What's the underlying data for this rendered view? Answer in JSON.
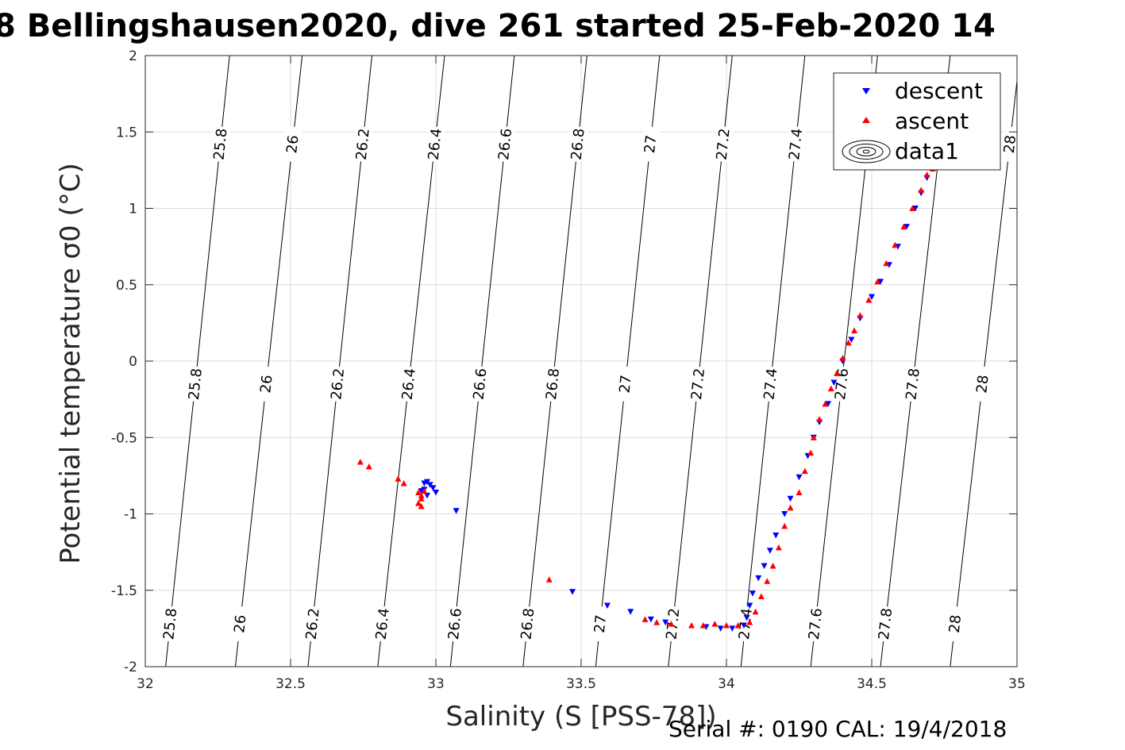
{
  "chart_data": {
    "type": "scatter",
    "title": "8 Bellingshausen2020, dive 261 started 25-Feb-2020 14",
    "xlabel": "Salinity (S [PSS-78])",
    "ylabel": "Potential temperature σ0 (°C)",
    "xlim": [
      32,
      35
    ],
    "ylim": [
      -2,
      2
    ],
    "xticks": [
      "32",
      "32.5",
      "33",
      "33.5",
      "34",
      "34.5",
      "35"
    ],
    "yticks": [
      "-2",
      "-1.5",
      "-1",
      "-0.5",
      "0",
      "0.5",
      "1",
      "1.5",
      "2"
    ],
    "grid": true,
    "legend_position": "top-right",
    "legend": [
      "descent",
      "ascent",
      "data1"
    ],
    "contours": {
      "levels": [
        25.8,
        26,
        26.2,
        26.4,
        26.6,
        26.8,
        27,
        27.2,
        27.4,
        27.6,
        27.8,
        28
      ],
      "labels": [
        "25.8",
        "26",
        "26.2",
        "26.4",
        "26.6",
        "26.8",
        "27",
        "27.2",
        "27.4",
        "27.6",
        "27.8",
        "28"
      ],
      "s_at_bottom": [
        32.07,
        32.31,
        32.56,
        32.8,
        33.05,
        33.3,
        33.55,
        33.8,
        34.05,
        34.29,
        34.53,
        34.77
      ],
      "s_at_top": [
        32.29,
        32.54,
        32.78,
        33.03,
        33.27,
        33.52,
        33.77,
        34.02,
        34.27,
        34.52,
        34.77,
        35.01
      ]
    },
    "series": [
      {
        "name": "descent",
        "color": "#0000ff",
        "marker": "triangle-down",
        "x": [
          32.95,
          32.96,
          32.97,
          32.98,
          32.99,
          33.0,
          32.97,
          32.96,
          33.07,
          33.47,
          33.59,
          33.67,
          33.74,
          33.79,
          33.93,
          33.98,
          34.02,
          34.06,
          34.07,
          34.08,
          34.09,
          34.11,
          34.13,
          34.15,
          34.17,
          34.2,
          34.22,
          34.25,
          34.28,
          34.3,
          34.32,
          34.35,
          34.37,
          34.4,
          34.43,
          34.46,
          34.5,
          34.53,
          34.56,
          34.59,
          34.62,
          34.65,
          34.67,
          34.69,
          34.71
        ],
        "y": [
          -0.85,
          -0.8,
          -0.79,
          -0.81,
          -0.83,
          -0.86,
          -0.88,
          -0.84,
          -0.98,
          -1.51,
          -1.6,
          -1.64,
          -1.69,
          -1.71,
          -1.74,
          -1.75,
          -1.75,
          -1.73,
          -1.68,
          -1.6,
          -1.52,
          -1.42,
          -1.34,
          -1.24,
          -1.14,
          -1.0,
          -0.9,
          -0.76,
          -0.62,
          -0.5,
          -0.4,
          -0.28,
          -0.14,
          0.0,
          0.14,
          0.28,
          0.42,
          0.52,
          0.63,
          0.75,
          0.88,
          1.0,
          1.1,
          1.2,
          1.26
        ]
      },
      {
        "name": "ascent",
        "color": "#ff0000",
        "marker": "triangle-up",
        "x": [
          32.74,
          32.77,
          32.87,
          32.89,
          32.94,
          32.95,
          32.95,
          32.94,
          32.96,
          32.95,
          33.39,
          33.72,
          33.76,
          33.81,
          33.88,
          33.92,
          33.96,
          34.0,
          34.04,
          34.08,
          34.1,
          34.12,
          34.14,
          34.16,
          34.18,
          34.2,
          34.22,
          34.25,
          34.27,
          34.29,
          34.3,
          34.32,
          34.34,
          34.36,
          34.38,
          34.4,
          34.42,
          34.44,
          34.46,
          34.49,
          34.52,
          34.55,
          34.58,
          34.61,
          34.64,
          34.67,
          34.69,
          34.71
        ],
        "y": [
          -0.66,
          -0.69,
          -0.77,
          -0.8,
          -0.86,
          -0.88,
          -0.9,
          -0.93,
          -0.85,
          -0.95,
          -1.43,
          -1.69,
          -1.71,
          -1.72,
          -1.73,
          -1.73,
          -1.72,
          -1.73,
          -1.73,
          -1.71,
          -1.64,
          -1.54,
          -1.44,
          -1.34,
          -1.22,
          -1.08,
          -0.96,
          -0.86,
          -0.72,
          -0.6,
          -0.5,
          -0.38,
          -0.28,
          -0.18,
          -0.08,
          0.02,
          0.12,
          0.2,
          0.3,
          0.4,
          0.52,
          0.64,
          0.76,
          0.88,
          1.0,
          1.12,
          1.22,
          1.26
        ]
      }
    ]
  },
  "footer": {
    "text": "Serial #: 0190  CAL: 19/4/2018"
  }
}
